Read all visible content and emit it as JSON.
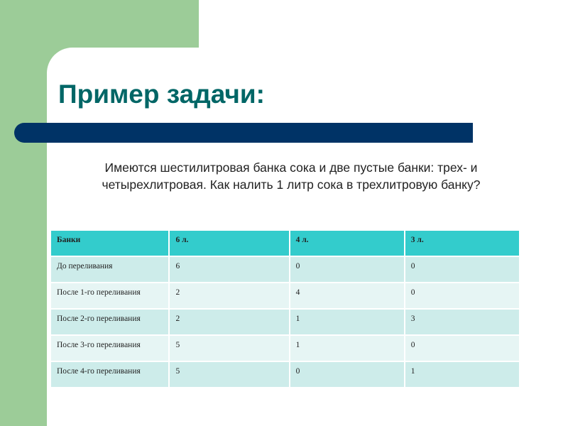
{
  "slide": {
    "title": "Пример задачи:",
    "text": "Имеются шестилитровая банка сока и две пустые банки: трех- и четырехлитровая. Как налить 1 литр сока в трехлитровую банку?",
    "colors": {
      "green": "#9ccc98",
      "title": "#006666",
      "bar": "#003366",
      "header": "#33cccc"
    }
  },
  "table": {
    "headers": [
      "Банки",
      "6 л.",
      "4 л.",
      "3 л."
    ],
    "rows": [
      [
        "До переливания",
        "6",
        "0",
        "0"
      ],
      [
        "После 1-го переливания",
        "2",
        "4",
        "0"
      ],
      [
        "После 2-го переливания",
        "2",
        "1",
        "3"
      ],
      [
        "После 3-го переливания",
        "5",
        "1",
        "0"
      ],
      [
        "После 4-го переливания",
        "5",
        "0",
        "1"
      ]
    ]
  }
}
